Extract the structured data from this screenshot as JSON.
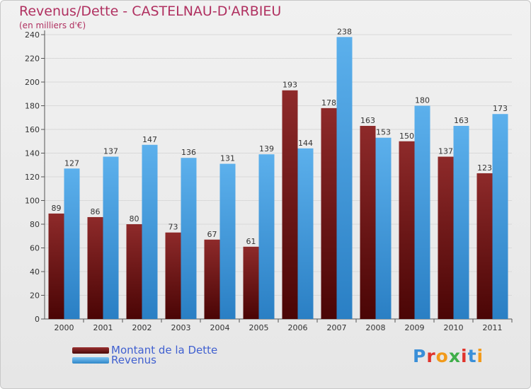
{
  "chart_data": {
    "type": "bar",
    "title": "Revenus/Dette - CASTELNAU-D'ARBIEU",
    "subtitle": "(en milliers d'€)",
    "categories": [
      "2000",
      "2001",
      "2002",
      "2003",
      "2004",
      "2005",
      "2006",
      "2007",
      "2008",
      "2009",
      "2010",
      "2011"
    ],
    "series": [
      {
        "name": "Montant de la Dette",
        "color": "#7a1f1f",
        "values": [
          89,
          86,
          80,
          73,
          67,
          61,
          193,
          178,
          163,
          150,
          137,
          123
        ]
      },
      {
        "name": "Revenus",
        "color": "#4aa3e3",
        "values": [
          127,
          137,
          147,
          136,
          131,
          139,
          144,
          238,
          153,
          180,
          163,
          173
        ]
      }
    ],
    "ylim": [
      0,
      240
    ],
    "yticks": [
      0,
      20,
      40,
      60,
      80,
      100,
      120,
      140,
      160,
      180,
      200,
      220,
      240
    ],
    "grid": true,
    "legend_position": "bottom-left",
    "data_labels": true
  },
  "logo": {
    "text": "Proxiti"
  }
}
